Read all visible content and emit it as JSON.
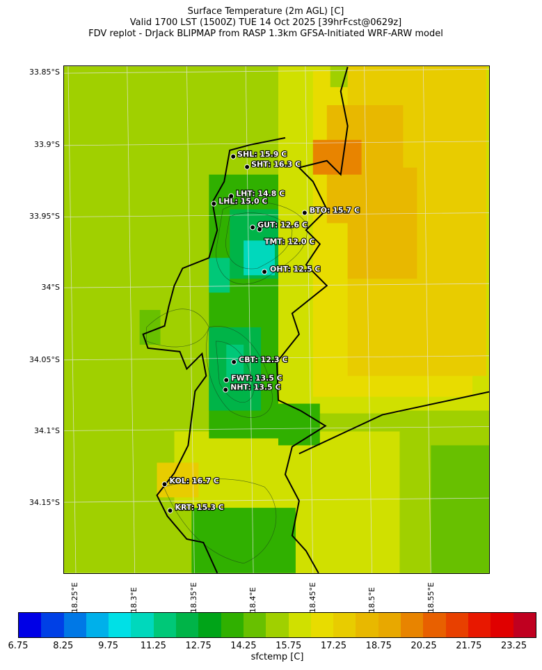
{
  "title": {
    "line1": "Surface Temperature (2m AGL) [C]",
    "line2": "Valid 1700 LST (1500Z) TUE 14 Oct 2025 [39hrFcst@0629z]",
    "line3": "FDV replot - DrJack BLIPMAP from RASP 1.3km GFSA-Initiated WRF-ARW model"
  },
  "lat_labels": [
    "33.85°S",
    "33.9°S",
    "33.95°S",
    "34°S",
    "34.05°S",
    "34.1°S",
    "34.15°S"
  ],
  "lon_labels": [
    "18.25°E",
    "18.3°E",
    "18.35°E",
    "18.4°E",
    "18.45°E",
    "18.5°E",
    "18.55°E"
  ],
  "stations": [
    {
      "label": "SHL: 15.9 C"
    },
    {
      "label": "SHT: 16.3 C"
    },
    {
      "label": "LHT: 14.8 C"
    },
    {
      "label": "LHL: 15.0 C"
    },
    {
      "label": "BTO: 15.7 C"
    },
    {
      "label": "GUT: 12.6 C"
    },
    {
      "label": "TMT: 12.0 C"
    },
    {
      "label": "OHT: 12.5 C"
    },
    {
      "label": "CBT: 12.3 C"
    },
    {
      "label": "FWT: 13.5 C"
    },
    {
      "label": "NHT: 13.5 C"
    },
    {
      "label": "KOL: 16.7 C"
    },
    {
      "label": "KRT: 15.3 C"
    }
  ],
  "colorbar": {
    "label": "sfctemp [C]",
    "ticks": [
      "6.75",
      "8.25",
      "9.75",
      "11.25",
      "12.75",
      "14.25",
      "15.75",
      "17.25",
      "18.75",
      "20.25",
      "21.75",
      "23.25"
    ],
    "colors": [
      "#0000e6",
      "#0040e6",
      "#0078e6",
      "#00b0ea",
      "#00e0e6",
      "#00d8bc",
      "#00c878",
      "#00b448",
      "#00a418",
      "#30b000",
      "#68c000",
      "#a0d000",
      "#d0e000",
      "#e8dc00",
      "#e8cc00",
      "#e8b800",
      "#e8a800",
      "#e88400",
      "#e86000",
      "#e84000",
      "#e81800",
      "#e00000",
      "#c00020"
    ]
  }
}
